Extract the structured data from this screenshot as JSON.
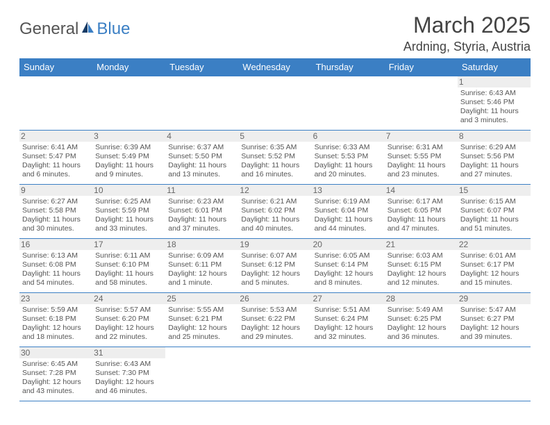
{
  "brand": {
    "name_main": "General",
    "name_sub": "Blue"
  },
  "header": {
    "title": "March 2025",
    "location": "Ardning, Styria, Austria"
  },
  "style": {
    "accent": "#3b7fc4",
    "header_bg": "#3b7fc4",
    "header_fg": "#ffffff",
    "daynum_bg": "#eeeeee",
    "text_color": "#555555",
    "border_color": "#3b7fc4",
    "title_fontsize": 32,
    "location_fontsize": 18,
    "dayheader_fontsize": 13,
    "cell_fontsize": 10.5
  },
  "columns": [
    "Sunday",
    "Monday",
    "Tuesday",
    "Wednesday",
    "Thursday",
    "Friday",
    "Saturday"
  ],
  "weeks": [
    [
      null,
      null,
      null,
      null,
      null,
      null,
      {
        "n": "1",
        "sr": "6:43 AM",
        "ss": "5:46 PM",
        "dl": "11 hours and 3 minutes."
      }
    ],
    [
      {
        "n": "2",
        "sr": "6:41 AM",
        "ss": "5:47 PM",
        "dl": "11 hours and 6 minutes."
      },
      {
        "n": "3",
        "sr": "6:39 AM",
        "ss": "5:49 PM",
        "dl": "11 hours and 9 minutes."
      },
      {
        "n": "4",
        "sr": "6:37 AM",
        "ss": "5:50 PM",
        "dl": "11 hours and 13 minutes."
      },
      {
        "n": "5",
        "sr": "6:35 AM",
        "ss": "5:52 PM",
        "dl": "11 hours and 16 minutes."
      },
      {
        "n": "6",
        "sr": "6:33 AM",
        "ss": "5:53 PM",
        "dl": "11 hours and 20 minutes."
      },
      {
        "n": "7",
        "sr": "6:31 AM",
        "ss": "5:55 PM",
        "dl": "11 hours and 23 minutes."
      },
      {
        "n": "8",
        "sr": "6:29 AM",
        "ss": "5:56 PM",
        "dl": "11 hours and 27 minutes."
      }
    ],
    [
      {
        "n": "9",
        "sr": "6:27 AM",
        "ss": "5:58 PM",
        "dl": "11 hours and 30 minutes."
      },
      {
        "n": "10",
        "sr": "6:25 AM",
        "ss": "5:59 PM",
        "dl": "11 hours and 33 minutes."
      },
      {
        "n": "11",
        "sr": "6:23 AM",
        "ss": "6:01 PM",
        "dl": "11 hours and 37 minutes."
      },
      {
        "n": "12",
        "sr": "6:21 AM",
        "ss": "6:02 PM",
        "dl": "11 hours and 40 minutes."
      },
      {
        "n": "13",
        "sr": "6:19 AM",
        "ss": "6:04 PM",
        "dl": "11 hours and 44 minutes."
      },
      {
        "n": "14",
        "sr": "6:17 AM",
        "ss": "6:05 PM",
        "dl": "11 hours and 47 minutes."
      },
      {
        "n": "15",
        "sr": "6:15 AM",
        "ss": "6:07 PM",
        "dl": "11 hours and 51 minutes."
      }
    ],
    [
      {
        "n": "16",
        "sr": "6:13 AM",
        "ss": "6:08 PM",
        "dl": "11 hours and 54 minutes."
      },
      {
        "n": "17",
        "sr": "6:11 AM",
        "ss": "6:10 PM",
        "dl": "11 hours and 58 minutes."
      },
      {
        "n": "18",
        "sr": "6:09 AM",
        "ss": "6:11 PM",
        "dl": "12 hours and 1 minute."
      },
      {
        "n": "19",
        "sr": "6:07 AM",
        "ss": "6:12 PM",
        "dl": "12 hours and 5 minutes."
      },
      {
        "n": "20",
        "sr": "6:05 AM",
        "ss": "6:14 PM",
        "dl": "12 hours and 8 minutes."
      },
      {
        "n": "21",
        "sr": "6:03 AM",
        "ss": "6:15 PM",
        "dl": "12 hours and 12 minutes."
      },
      {
        "n": "22",
        "sr": "6:01 AM",
        "ss": "6:17 PM",
        "dl": "12 hours and 15 minutes."
      }
    ],
    [
      {
        "n": "23",
        "sr": "5:59 AM",
        "ss": "6:18 PM",
        "dl": "12 hours and 18 minutes."
      },
      {
        "n": "24",
        "sr": "5:57 AM",
        "ss": "6:20 PM",
        "dl": "12 hours and 22 minutes."
      },
      {
        "n": "25",
        "sr": "5:55 AM",
        "ss": "6:21 PM",
        "dl": "12 hours and 25 minutes."
      },
      {
        "n": "26",
        "sr": "5:53 AM",
        "ss": "6:22 PM",
        "dl": "12 hours and 29 minutes."
      },
      {
        "n": "27",
        "sr": "5:51 AM",
        "ss": "6:24 PM",
        "dl": "12 hours and 32 minutes."
      },
      {
        "n": "28",
        "sr": "5:49 AM",
        "ss": "6:25 PM",
        "dl": "12 hours and 36 minutes."
      },
      {
        "n": "29",
        "sr": "5:47 AM",
        "ss": "6:27 PM",
        "dl": "12 hours and 39 minutes."
      }
    ],
    [
      {
        "n": "30",
        "sr": "6:45 AM",
        "ss": "7:28 PM",
        "dl": "12 hours and 43 minutes."
      },
      {
        "n": "31",
        "sr": "6:43 AM",
        "ss": "7:30 PM",
        "dl": "12 hours and 46 minutes."
      },
      null,
      null,
      null,
      null,
      null
    ]
  ],
  "labels": {
    "sunrise": "Sunrise:",
    "sunset": "Sunset:",
    "daylight": "Daylight:"
  }
}
